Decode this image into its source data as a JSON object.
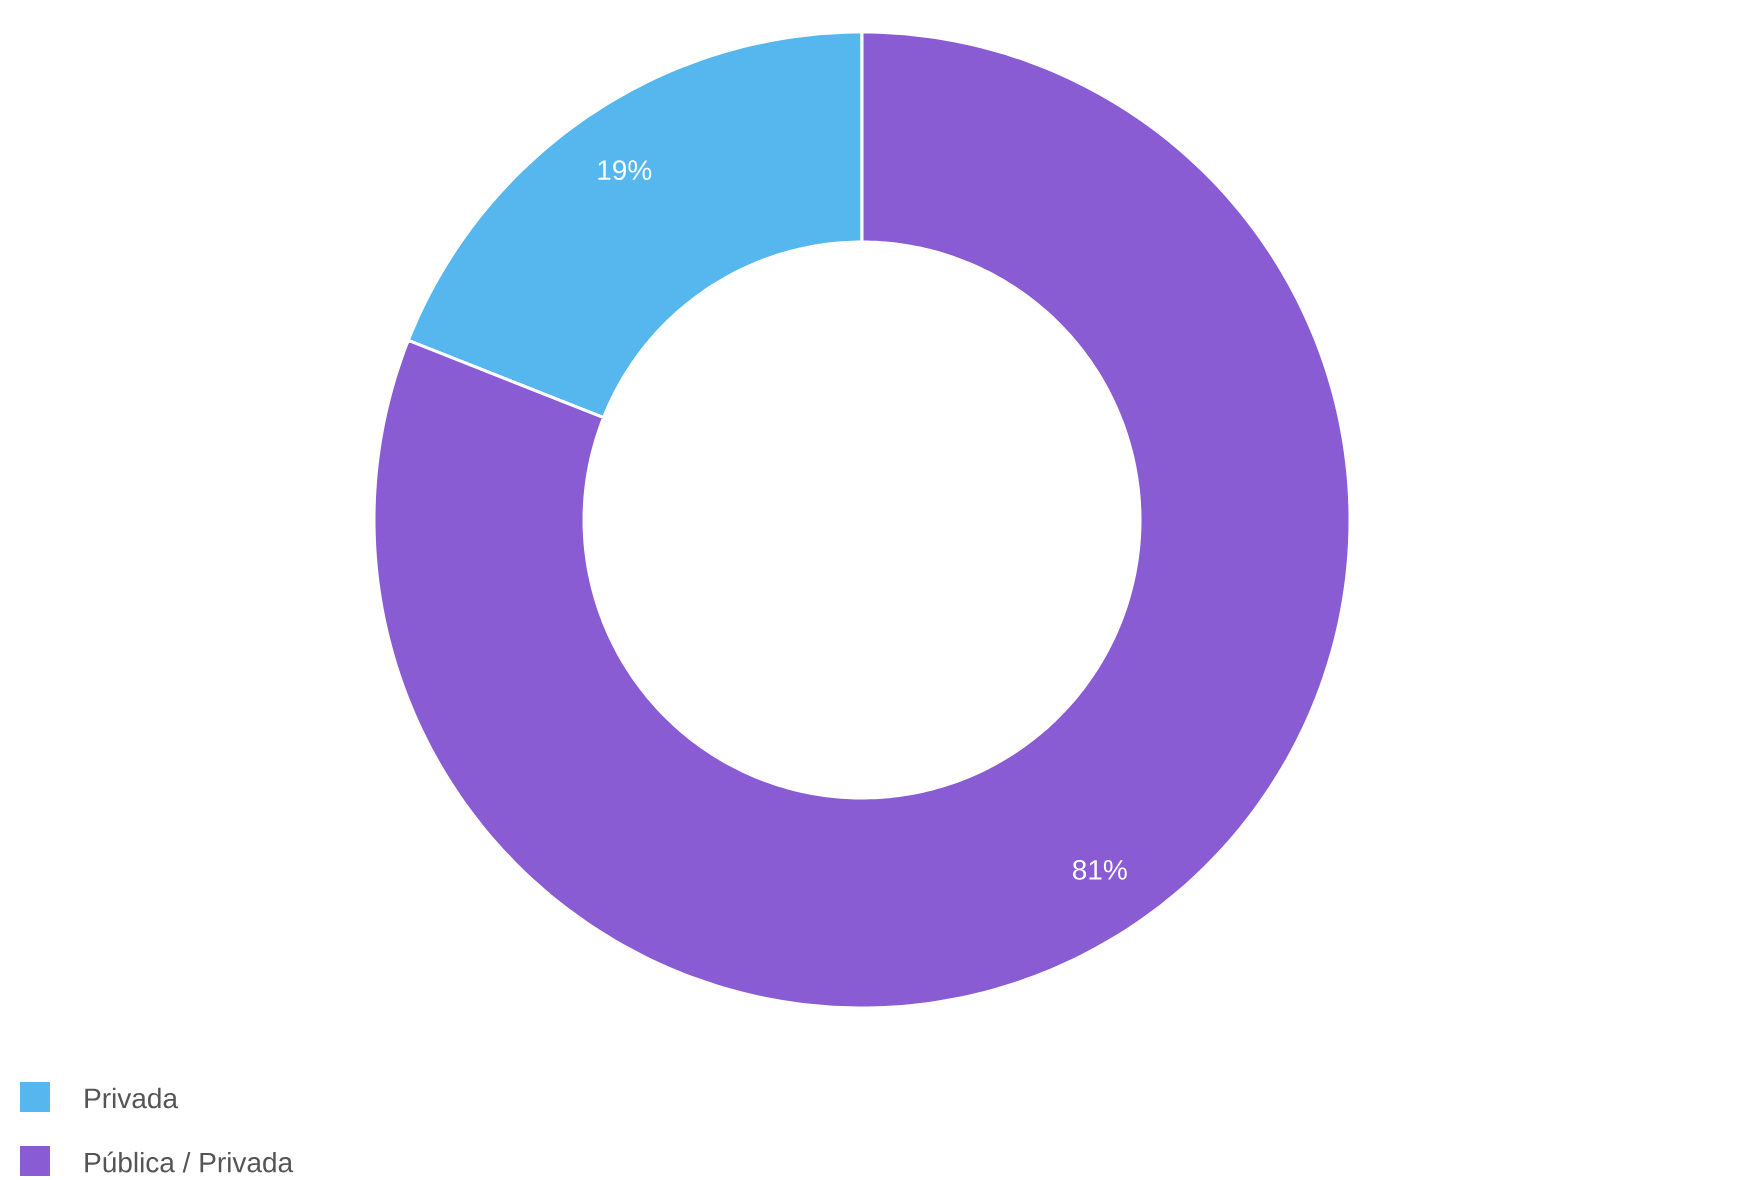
{
  "chart_data": {
    "type": "donut",
    "categories": [
      "Privada",
      "Pública / Privada"
    ],
    "values": [
      19,
      81
    ],
    "colors": [
      "#55b7ee",
      "#895cd4"
    ],
    "value_labels": [
      "19%",
      "81%"
    ],
    "legend": "bottom left"
  }
}
